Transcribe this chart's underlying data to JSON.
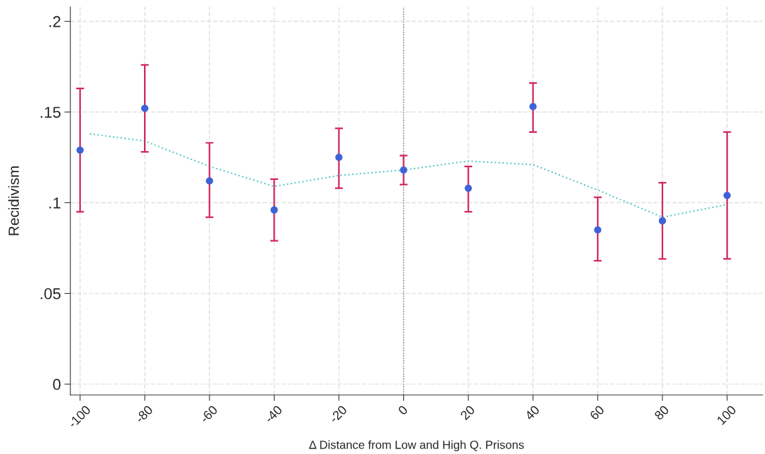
{
  "chart_data": {
    "type": "scatter",
    "xlabel": "Δ Distance from Low and High Q. Prisons",
    "ylabel": "Recidivism",
    "x": [
      -100,
      -80,
      -60,
      -40,
      -20,
      0,
      20,
      40,
      60,
      80,
      100
    ],
    "series": [
      {
        "color": "#3f63d6",
        "values": [
          0.129,
          0.152,
          0.112,
          0.096,
          0.125,
          0.118,
          0.108,
          0.153,
          0.085,
          0.09,
          0.104
        ],
        "errors": [
          [
            0.095,
            0.163
          ],
          [
            0.128,
            0.176
          ],
          [
            0.092,
            0.133
          ],
          [
            0.079,
            0.113
          ],
          [
            0.108,
            0.141
          ],
          [
            0.11,
            0.126
          ],
          [
            0.095,
            0.12
          ],
          [
            0.139,
            0.166
          ],
          [
            0.068,
            0.103
          ],
          [
            0.069,
            0.111
          ],
          [
            0.069,
            0.139
          ]
        ]
      },
      {
        "type": "line",
        "color": "#5cc8c8",
        "line_style": "dotted",
        "marker": "none",
        "x": [
          -97,
          -80,
          -60,
          -40,
          -20,
          0,
          20,
          40,
          60,
          80,
          100
        ],
        "values": [
          0.138,
          0.134,
          0.12,
          0.109,
          0.115,
          0.118,
          0.123,
          0.121,
          0.107,
          0.092,
          0.099
        ]
      }
    ],
    "xlim": [
      -103,
      111
    ],
    "ylim": [
      -0.006,
      0.208
    ],
    "xticks": [
      -100,
      -80,
      -60,
      -40,
      -20,
      0,
      20,
      40,
      60,
      80,
      100
    ],
    "yticks": [
      {
        "value": 0,
        "label": "0"
      },
      {
        "value": 0.05,
        "label": ".05"
      },
      {
        "value": 0.1,
        "label": ".1"
      },
      {
        "value": 0.15,
        "label": ".15"
      },
      {
        "value": 0.2,
        "label": ".2"
      }
    ],
    "ref_lines": [
      {
        "axis": "x",
        "value": 0,
        "color": "#777777",
        "line_style": "dotted"
      }
    ],
    "grid": true,
    "marker": "circle",
    "legend": false
  }
}
